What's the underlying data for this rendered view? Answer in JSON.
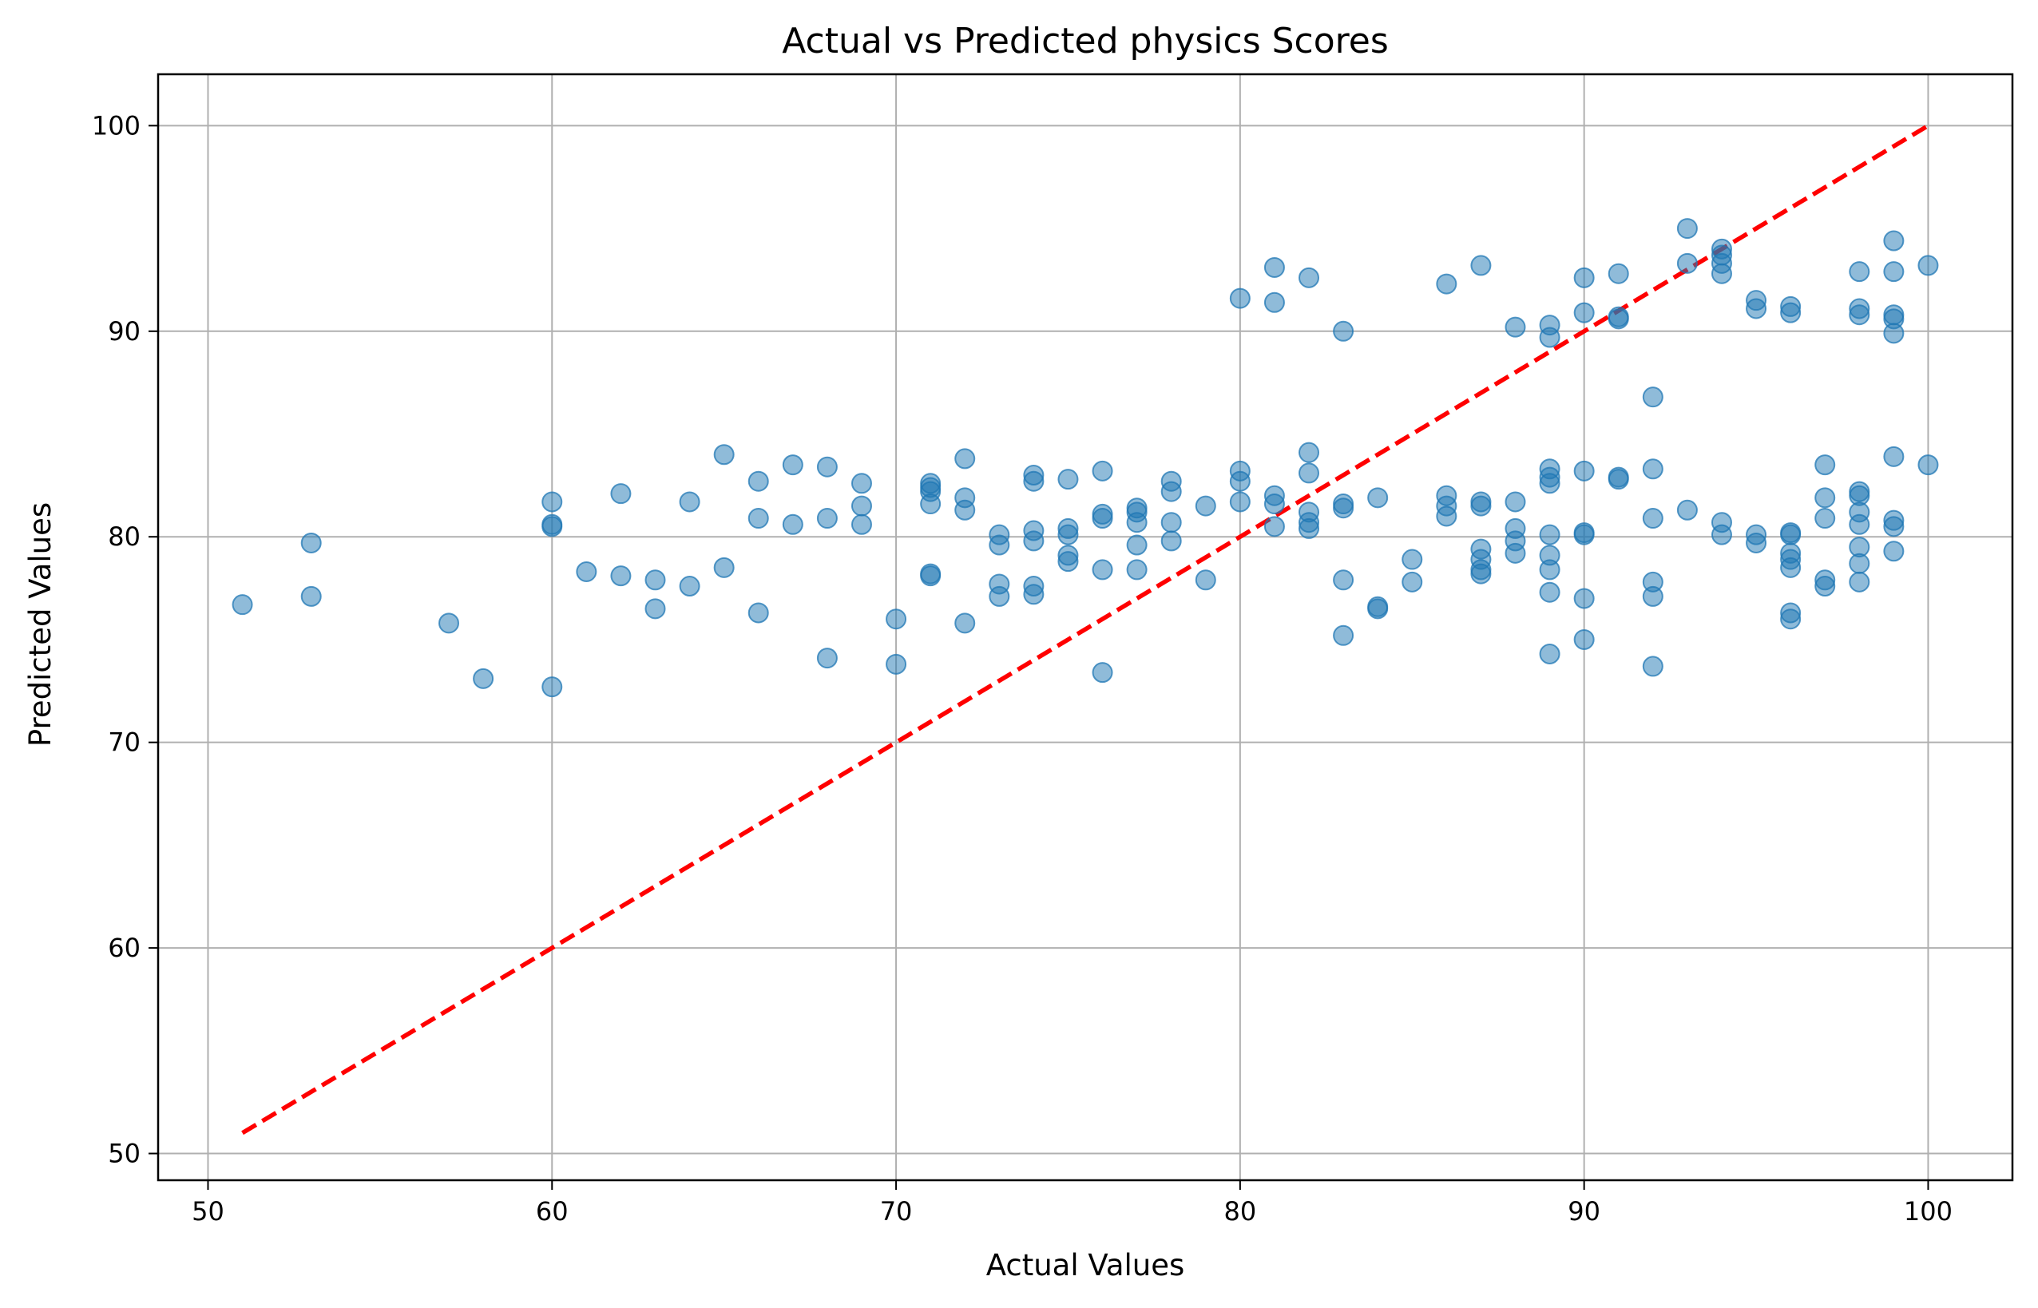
{
  "chart_data": {
    "type": "scatter",
    "title": "Actual vs Predicted physics Scores",
    "xlabel": "Actual Values",
    "ylabel": "Predicted Values",
    "xlim": [
      48.55,
      102.45
    ],
    "ylim": [
      48.7,
      102.5
    ],
    "xticks": [
      50,
      60,
      70,
      80,
      90,
      100
    ],
    "yticks": [
      50,
      60,
      70,
      80,
      90,
      100
    ],
    "grid": true,
    "marker_color": "#1f77b4",
    "marker_alpha": 0.5,
    "reference_line": {
      "x": [
        51,
        100
      ],
      "y": [
        51,
        100
      ],
      "color": "#ff0000",
      "style": "dashed"
    },
    "points": [
      [
        51,
        76.7
      ],
      [
        53,
        79.7
      ],
      [
        53,
        77.1
      ],
      [
        57,
        75.8
      ],
      [
        58,
        73.1
      ],
      [
        60,
        81.7
      ],
      [
        60,
        80.6
      ],
      [
        60,
        80.5
      ],
      [
        60,
        72.7
      ],
      [
        61,
        78.3
      ],
      [
        62,
        82.1
      ],
      [
        62,
        78.1
      ],
      [
        63,
        77.9
      ],
      [
        63,
        76.5
      ],
      [
        64,
        81.7
      ],
      [
        64,
        77.6
      ],
      [
        65,
        84.0
      ],
      [
        65,
        78.5
      ],
      [
        66,
        82.7
      ],
      [
        66,
        80.9
      ],
      [
        66,
        76.3
      ],
      [
        67,
        83.5
      ],
      [
        67,
        80.6
      ],
      [
        68,
        83.4
      ],
      [
        68,
        80.9
      ],
      [
        68,
        74.1
      ],
      [
        69,
        82.6
      ],
      [
        69,
        81.5
      ],
      [
        69,
        80.6
      ],
      [
        70,
        76.0
      ],
      [
        70,
        73.8
      ],
      [
        71,
        82.6
      ],
      [
        71,
        82.4
      ],
      [
        71,
        82.2
      ],
      [
        71,
        81.6
      ],
      [
        71,
        78.2
      ],
      [
        71,
        78.1
      ],
      [
        72,
        83.8
      ],
      [
        72,
        81.9
      ],
      [
        72,
        81.3
      ],
      [
        72,
        75.8
      ],
      [
        73,
        80.1
      ],
      [
        73,
        79.6
      ],
      [
        73,
        77.7
      ],
      [
        73,
        77.1
      ],
      [
        74,
        83.0
      ],
      [
        74,
        82.7
      ],
      [
        74,
        80.3
      ],
      [
        74,
        79.8
      ],
      [
        74,
        77.6
      ],
      [
        74,
        77.2
      ],
      [
        75,
        82.8
      ],
      [
        75,
        80.4
      ],
      [
        75,
        80.1
      ],
      [
        75,
        79.1
      ],
      [
        75,
        78.8
      ],
      [
        76,
        83.2
      ],
      [
        76,
        81.1
      ],
      [
        76,
        80.9
      ],
      [
        76,
        78.4
      ],
      [
        76,
        73.4
      ],
      [
        77,
        81.4
      ],
      [
        77,
        81.2
      ],
      [
        77,
        80.7
      ],
      [
        77,
        79.6
      ],
      [
        77,
        78.4
      ],
      [
        78,
        82.7
      ],
      [
        78,
        82.2
      ],
      [
        78,
        80.7
      ],
      [
        78,
        79.8
      ],
      [
        79,
        81.5
      ],
      [
        79,
        77.9
      ],
      [
        80,
        91.6
      ],
      [
        80,
        83.2
      ],
      [
        80,
        82.7
      ],
      [
        80,
        81.7
      ],
      [
        81,
        93.1
      ],
      [
        81,
        91.4
      ],
      [
        81,
        82.0
      ],
      [
        81,
        81.6
      ],
      [
        81,
        80.5
      ],
      [
        82,
        92.6
      ],
      [
        82,
        84.1
      ],
      [
        82,
        83.1
      ],
      [
        82,
        81.2
      ],
      [
        82,
        80.7
      ],
      [
        82,
        80.4
      ],
      [
        83,
        90.0
      ],
      [
        83,
        81.6
      ],
      [
        83,
        81.4
      ],
      [
        83,
        77.9
      ],
      [
        83,
        75.2
      ],
      [
        84,
        81.9
      ],
      [
        84,
        76.6
      ],
      [
        84,
        76.5
      ],
      [
        85,
        78.9
      ],
      [
        85,
        77.8
      ],
      [
        86,
        92.3
      ],
      [
        86,
        82.0
      ],
      [
        86,
        81.5
      ],
      [
        86,
        81.0
      ],
      [
        87,
        93.2
      ],
      [
        87,
        81.7
      ],
      [
        87,
        81.5
      ],
      [
        87,
        79.4
      ],
      [
        87,
        78.9
      ],
      [
        87,
        78.4
      ],
      [
        87,
        78.2
      ],
      [
        88,
        90.2
      ],
      [
        88,
        81.7
      ],
      [
        88,
        80.4
      ],
      [
        88,
        79.8
      ],
      [
        88,
        79.2
      ],
      [
        89,
        90.3
      ],
      [
        89,
        89.7
      ],
      [
        89,
        83.3
      ],
      [
        89,
        82.9
      ],
      [
        89,
        82.6
      ],
      [
        89,
        80.1
      ],
      [
        89,
        79.1
      ],
      [
        89,
        78.4
      ],
      [
        89,
        77.3
      ],
      [
        89,
        74.3
      ],
      [
        90,
        92.6
      ],
      [
        90,
        90.9
      ],
      [
        90,
        83.2
      ],
      [
        90,
        80.2
      ],
      [
        90,
        80.1
      ],
      [
        90,
        77.0
      ],
      [
        90,
        75.0
      ],
      [
        91,
        92.8
      ],
      [
        91,
        90.7
      ],
      [
        91,
        90.6
      ],
      [
        91,
        82.9
      ],
      [
        91,
        82.8
      ],
      [
        92,
        86.8
      ],
      [
        92,
        83.3
      ],
      [
        92,
        80.9
      ],
      [
        92,
        77.8
      ],
      [
        92,
        77.1
      ],
      [
        92,
        73.7
      ],
      [
        93,
        95.0
      ],
      [
        93,
        93.3
      ],
      [
        93,
        81.3
      ],
      [
        94,
        94.0
      ],
      [
        94,
        93.7
      ],
      [
        94,
        93.3
      ],
      [
        94,
        92.8
      ],
      [
        94,
        80.7
      ],
      [
        94,
        80.1
      ],
      [
        95,
        91.5
      ],
      [
        95,
        91.1
      ],
      [
        95,
        80.1
      ],
      [
        95,
        79.7
      ],
      [
        96,
        91.2
      ],
      [
        96,
        90.9
      ],
      [
        96,
        80.2
      ],
      [
        96,
        80.1
      ],
      [
        96,
        79.2
      ],
      [
        96,
        78.9
      ],
      [
        96,
        78.5
      ],
      [
        96,
        76.3
      ],
      [
        96,
        76.0
      ],
      [
        97,
        83.5
      ],
      [
        97,
        81.9
      ],
      [
        97,
        80.9
      ],
      [
        97,
        77.9
      ],
      [
        97,
        77.6
      ],
      [
        98,
        92.9
      ],
      [
        98,
        91.1
      ],
      [
        98,
        90.8
      ],
      [
        98,
        82.2
      ],
      [
        98,
        82.0
      ],
      [
        98,
        81.2
      ],
      [
        98,
        80.6
      ],
      [
        98,
        79.5
      ],
      [
        98,
        78.7
      ],
      [
        98,
        77.8
      ],
      [
        99,
        94.4
      ],
      [
        99,
        92.9
      ],
      [
        99,
        90.8
      ],
      [
        99,
        90.6
      ],
      [
        99,
        89.9
      ],
      [
        99,
        83.9
      ],
      [
        99,
        80.8
      ],
      [
        99,
        80.5
      ],
      [
        99,
        79.3
      ],
      [
        100,
        93.2
      ],
      [
        100,
        83.5
      ]
    ]
  }
}
